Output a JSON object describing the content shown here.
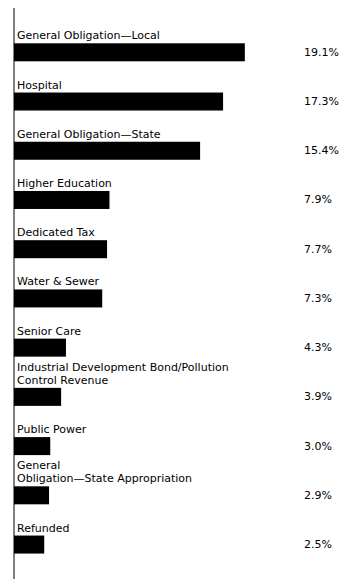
{
  "chart_data": {
    "type": "bar",
    "orientation": "horizontal",
    "categories": [
      "General Obligation—Local",
      "Hospital",
      "General Obligation—State",
      "Higher Education",
      "Dedicated Tax",
      "Water & Sewer",
      "Senior Care",
      "Industrial Development Bond/Pollution\nControl Revenue",
      "Public Power",
      "General\nObligation—State Appropriation",
      "Refunded"
    ],
    "values": [
      19.1,
      17.3,
      15.4,
      7.9,
      7.7,
      7.3,
      4.3,
      3.9,
      3.0,
      2.9,
      2.5
    ],
    "value_labels": [
      "19.1%",
      "17.3%",
      "15.4%",
      "7.9%",
      "7.7%",
      "7.3%",
      "4.3%",
      "3.9%",
      "3.0%",
      "2.9%",
      "2.5%"
    ],
    "data_labels": true,
    "color": "#000000",
    "xlim": [
      0,
      23.5
    ],
    "tick_labels": false,
    "grid": false
  }
}
